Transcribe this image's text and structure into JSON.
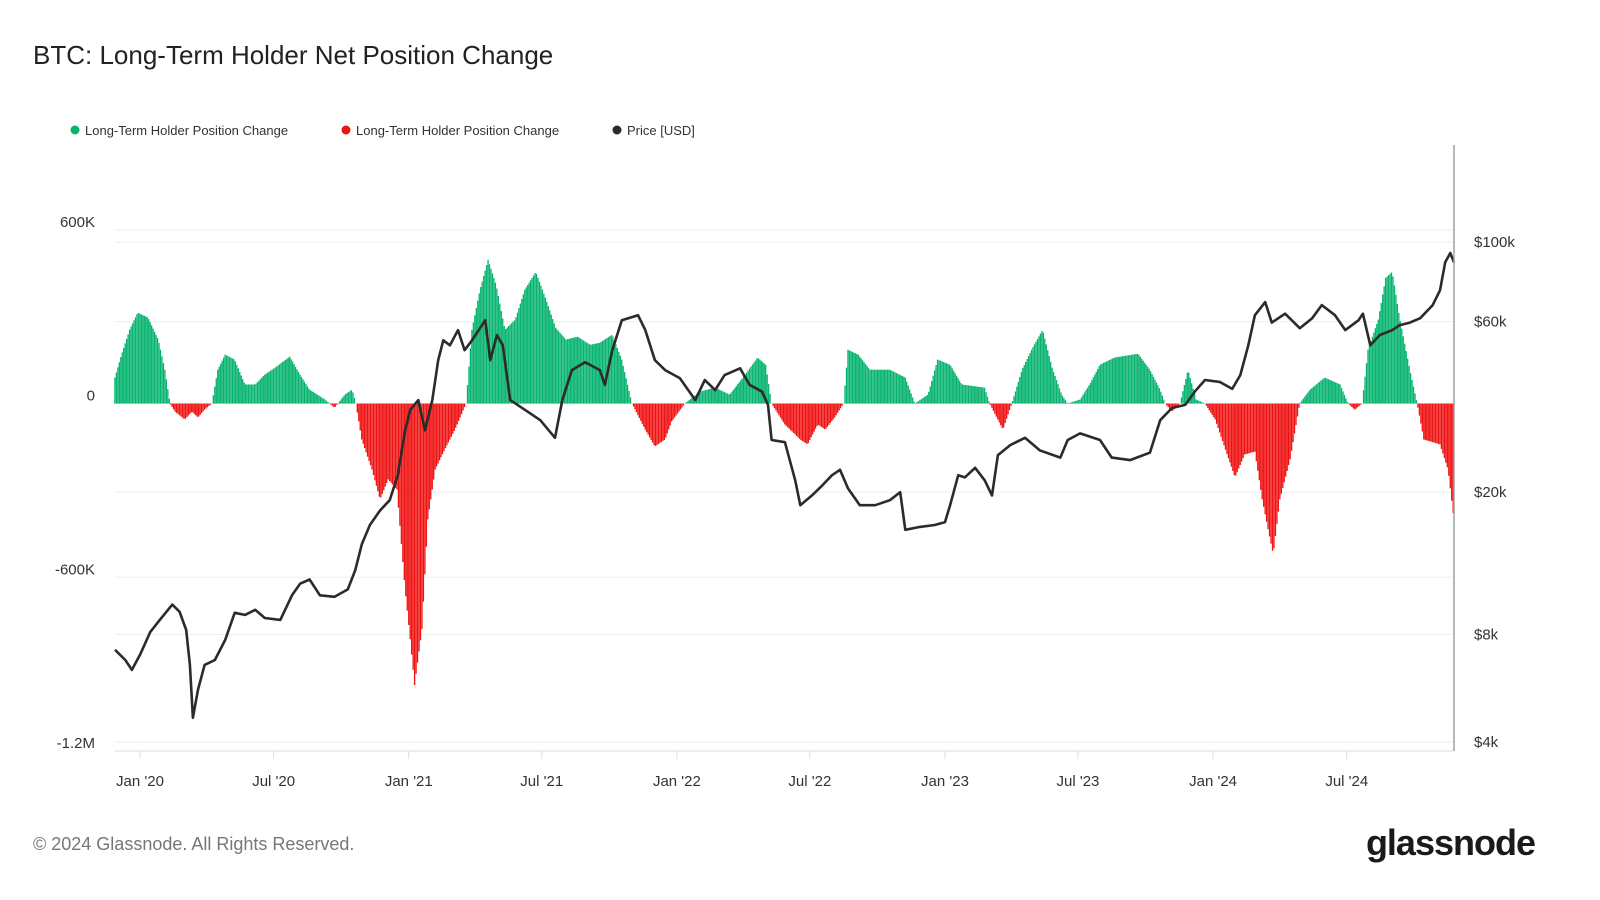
{
  "chart_data": {
    "type": "bar+line",
    "title": "BTC: Long-Term Holder Net Position Change",
    "legend_placement": "top-left",
    "legend": [
      {
        "label": "Long-Term Holder Position Change",
        "color": "#06b36f"
      },
      {
        "label": "Long-Term Holder Position Change",
        "color": "#ef1212"
      },
      {
        "label": "Price [USD]",
        "color": "#2b2b2b"
      }
    ],
    "colors": {
      "positive": "#06b36f",
      "negative": "#ef1212",
      "price": "#2b2b2b",
      "grid": "#eeeeee"
    },
    "grid": true,
    "x_range": [
      "2019-11-28",
      "2024-11-24"
    ],
    "x_ticks": [
      {
        "date": "2020-01-01",
        "label": "Jan '20"
      },
      {
        "date": "2020-07-01",
        "label": "Jul '20"
      },
      {
        "date": "2021-01-01",
        "label": "Jan '21"
      },
      {
        "date": "2021-07-01",
        "label": "Jul '21"
      },
      {
        "date": "2022-01-01",
        "label": "Jan '22"
      },
      {
        "date": "2022-07-01",
        "label": "Jul '22"
      },
      {
        "date": "2023-01-01",
        "label": "Jan '23"
      },
      {
        "date": "2023-07-01",
        "label": "Jul '23"
      },
      {
        "date": "2024-01-01",
        "label": "Jan '24"
      },
      {
        "date": "2024-07-01",
        "label": "Jul '24"
      }
    ],
    "left_axis": {
      "scale": "linear",
      "range": [
        -1200000,
        893000
      ],
      "ticks": [
        {
          "value": 600000,
          "label": "600K"
        },
        {
          "value": 0,
          "label": "0"
        },
        {
          "value": -600000,
          "label": "-600K"
        },
        {
          "value": -1200000,
          "label": "-1.2M"
        }
      ]
    },
    "right_axis": {
      "scale": "log",
      "range": [
        3780,
        187000
      ],
      "ticks": [
        {
          "value": 100000,
          "label": "$100k"
        },
        {
          "value": 60000,
          "label": "$60k"
        },
        {
          "value": 20000,
          "label": "$20k"
        },
        {
          "value": 8000,
          "label": "$8k"
        },
        {
          "value": 4000,
          "label": "$4k"
        }
      ]
    },
    "position_change_thousands_btc": [
      [
        "2019-11-28",
        90
      ],
      [
        "2019-12-07",
        169
      ],
      [
        "2019-12-18",
        255
      ],
      [
        "2019-12-29",
        314
      ],
      [
        "2020-01-12",
        297
      ],
      [
        "2020-01-26",
        221
      ],
      [
        "2020-02-04",
        117
      ],
      [
        "2020-02-11",
        0
      ],
      [
        "2020-02-18",
        -28
      ],
      [
        "2020-03-02",
        -55
      ],
      [
        "2020-03-12",
        -28
      ],
      [
        "2020-03-20",
        -48
      ],
      [
        "2020-03-29",
        -21
      ],
      [
        "2020-04-08",
        0
      ],
      [
        "2020-04-16",
        117
      ],
      [
        "2020-04-26",
        169
      ],
      [
        "2020-05-09",
        152
      ],
      [
        "2020-05-23",
        66
      ],
      [
        "2020-06-06",
        66
      ],
      [
        "2020-06-19",
        100
      ],
      [
        "2020-07-03",
        124
      ],
      [
        "2020-07-23",
        162
      ],
      [
        "2020-08-06",
        100
      ],
      [
        "2020-08-19",
        48
      ],
      [
        "2020-09-09",
        14
      ],
      [
        "2020-09-22",
        -14
      ],
      [
        "2020-10-06",
        31
      ],
      [
        "2020-10-16",
        48
      ],
      [
        "2020-10-21",
        0
      ],
      [
        "2020-10-29",
        -124
      ],
      [
        "2020-11-12",
        -228
      ],
      [
        "2020-11-23",
        -331
      ],
      [
        "2020-12-04",
        -262
      ],
      [
        "2020-12-16",
        -297
      ],
      [
        "2020-12-27",
        -641
      ],
      [
        "2021-01-03",
        -814
      ],
      [
        "2021-01-09",
        -972
      ],
      [
        "2021-01-19",
        -779
      ],
      [
        "2021-01-27",
        -400
      ],
      [
        "2021-02-06",
        -228
      ],
      [
        "2021-02-19",
        -159
      ],
      [
        "2021-03-05",
        -90
      ],
      [
        "2021-03-20",
        0
      ],
      [
        "2021-03-28",
        255
      ],
      [
        "2021-04-08",
        393
      ],
      [
        "2021-04-19",
        497
      ],
      [
        "2021-04-30",
        410
      ],
      [
        "2021-05-12",
        255
      ],
      [
        "2021-05-26",
        290
      ],
      [
        "2021-06-08",
        393
      ],
      [
        "2021-06-23",
        455
      ],
      [
        "2021-07-07",
        359
      ],
      [
        "2021-07-20",
        262
      ],
      [
        "2021-08-03",
        221
      ],
      [
        "2021-08-19",
        231
      ],
      [
        "2021-09-05",
        203
      ],
      [
        "2021-09-18",
        210
      ],
      [
        "2021-10-05",
        238
      ],
      [
        "2021-10-18",
        152
      ],
      [
        "2021-11-01",
        0
      ],
      [
        "2021-11-19",
        -90
      ],
      [
        "2021-12-02",
        -148
      ],
      [
        "2021-12-16",
        -124
      ],
      [
        "2021-12-25",
        -62
      ],
      [
        "2022-01-12",
        0
      ],
      [
        "2022-02-01",
        41
      ],
      [
        "2022-02-22",
        55
      ],
      [
        "2022-03-14",
        31
      ],
      [
        "2022-04-04",
        100
      ],
      [
        "2022-04-21",
        159
      ],
      [
        "2022-05-02",
        134
      ],
      [
        "2022-05-10",
        0
      ],
      [
        "2022-05-28",
        -72
      ],
      [
        "2022-06-18",
        -124
      ],
      [
        "2022-06-28",
        -141
      ],
      [
        "2022-07-12",
        -72
      ],
      [
        "2022-07-22",
        -90
      ],
      [
        "2022-08-04",
        -48
      ],
      [
        "2022-08-16",
        0
      ],
      [
        "2022-08-22",
        186
      ],
      [
        "2022-09-05",
        169
      ],
      [
        "2022-09-21",
        117
      ],
      [
        "2022-10-18",
        117
      ],
      [
        "2022-11-08",
        90
      ],
      [
        "2022-11-21",
        0
      ],
      [
        "2022-12-09",
        31
      ],
      [
        "2022-12-22",
        152
      ],
      [
        "2023-01-08",
        134
      ],
      [
        "2023-01-24",
        66
      ],
      [
        "2023-02-24",
        55
      ],
      [
        "2023-03-03",
        0
      ],
      [
        "2023-03-21",
        -90
      ],
      [
        "2023-04-02",
        0
      ],
      [
        "2023-04-16",
        117
      ],
      [
        "2023-04-29",
        186
      ],
      [
        "2023-05-14",
        255
      ],
      [
        "2023-05-27",
        124
      ],
      [
        "2023-06-09",
        31
      ],
      [
        "2023-06-17",
        0
      ],
      [
        "2023-07-04",
        14
      ],
      [
        "2023-07-17",
        66
      ],
      [
        "2023-07-31",
        134
      ],
      [
        "2023-08-20",
        159
      ],
      [
        "2023-09-21",
        172
      ],
      [
        "2023-10-07",
        117
      ],
      [
        "2023-10-21",
        48
      ],
      [
        "2023-10-28",
        0
      ],
      [
        "2023-11-06",
        -28
      ],
      [
        "2023-11-17",
        0
      ],
      [
        "2023-11-28",
        117
      ],
      [
        "2023-12-09",
        14
      ],
      [
        "2023-12-21",
        0
      ],
      [
        "2024-01-04",
        -55
      ],
      [
        "2024-01-17",
        -152
      ],
      [
        "2024-01-31",
        -255
      ],
      [
        "2024-02-13",
        -176
      ],
      [
        "2024-02-27",
        -166
      ],
      [
        "2024-03-08",
        -331
      ],
      [
        "2024-03-16",
        -434
      ],
      [
        "2024-03-23",
        -521
      ],
      [
        "2024-04-01",
        -331
      ],
      [
        "2024-04-15",
        -193
      ],
      [
        "2024-04-28",
        0
      ],
      [
        "2024-05-12",
        48
      ],
      [
        "2024-06-01",
        90
      ],
      [
        "2024-06-22",
        66
      ],
      [
        "2024-07-03",
        0
      ],
      [
        "2024-07-12",
        -21
      ],
      [
        "2024-07-22",
        0
      ],
      [
        "2024-07-30",
        186
      ],
      [
        "2024-08-13",
        290
      ],
      [
        "2024-08-23",
        434
      ],
      [
        "2024-09-01",
        455
      ],
      [
        "2024-09-11",
        297
      ],
      [
        "2024-09-25",
        117
      ],
      [
        "2024-10-05",
        0
      ],
      [
        "2024-10-14",
        -124
      ],
      [
        "2024-11-05",
        -141
      ],
      [
        "2024-11-16",
        -228
      ],
      [
        "2024-11-24",
        -400
      ]
    ],
    "price_usd": [
      [
        "2019-11-28",
        7250
      ],
      [
        "2019-12-12",
        6790
      ],
      [
        "2019-12-21",
        6370
      ],
      [
        "2020-01-01",
        7020
      ],
      [
        "2020-01-15",
        8140
      ],
      [
        "2020-01-28",
        8790
      ],
      [
        "2020-02-14",
        9700
      ],
      [
        "2020-02-24",
        9260
      ],
      [
        "2020-03-04",
        8240
      ],
      [
        "2020-03-09",
        6580
      ],
      [
        "2020-03-13",
        4680
      ],
      [
        "2020-03-20",
        5610
      ],
      [
        "2020-03-29",
        6580
      ],
      [
        "2020-04-12",
        6790
      ],
      [
        "2020-04-26",
        7730
      ],
      [
        "2020-05-09",
        9200
      ],
      [
        "2020-05-23",
        9080
      ],
      [
        "2020-06-06",
        9380
      ],
      [
        "2020-06-19",
        8900
      ],
      [
        "2020-07-10",
        8790
      ],
      [
        "2020-07-26",
        10300
      ],
      [
        "2020-08-06",
        11100
      ],
      [
        "2020-08-19",
        11400
      ],
      [
        "2020-09-02",
        10300
      ],
      [
        "2020-09-22",
        10200
      ],
      [
        "2020-10-10",
        10700
      ],
      [
        "2020-10-20",
        12100
      ],
      [
        "2020-10-29",
        14300
      ],
      [
        "2020-11-09",
        16200
      ],
      [
        "2020-11-23",
        17800
      ],
      [
        "2020-12-06",
        19000
      ],
      [
        "2020-12-17",
        22300
      ],
      [
        "2020-12-27",
        29800
      ],
      [
        "2021-01-03",
        34000
      ],
      [
        "2021-01-14",
        36200
      ],
      [
        "2021-01-23",
        29800
      ],
      [
        "2021-02-02",
        36200
      ],
      [
        "2021-02-10",
        46800
      ],
      [
        "2021-02-17",
        53200
      ],
      [
        "2021-02-26",
        51500
      ],
      [
        "2021-03-09",
        56800
      ],
      [
        "2021-03-18",
        49900
      ],
      [
        "2021-03-28",
        53200
      ],
      [
        "2021-04-15",
        60500
      ],
      [
        "2021-04-22",
        46800
      ],
      [
        "2021-05-01",
        55000
      ],
      [
        "2021-05-09",
        51500
      ],
      [
        "2021-05-19",
        36200
      ],
      [
        "2021-06-08",
        34000
      ],
      [
        "2021-06-29",
        31800
      ],
      [
        "2021-07-19",
        28400
      ],
      [
        "2021-07-29",
        36200
      ],
      [
        "2021-08-11",
        43900
      ],
      [
        "2021-08-29",
        46200
      ],
      [
        "2021-09-18",
        43900
      ],
      [
        "2021-09-25",
        39900
      ],
      [
        "2021-10-05",
        49900
      ],
      [
        "2021-10-18",
        60500
      ],
      [
        "2021-11-09",
        62500
      ],
      [
        "2021-11-19",
        56800
      ],
      [
        "2021-12-02",
        46800
      ],
      [
        "2021-12-16",
        43900
      ],
      [
        "2022-01-05",
        41700
      ],
      [
        "2022-01-26",
        36200
      ],
      [
        "2022-02-08",
        41200
      ],
      [
        "2022-02-22",
        38600
      ],
      [
        "2022-03-07",
        42500
      ],
      [
        "2022-03-28",
        44400
      ],
      [
        "2022-04-10",
        39900
      ],
      [
        "2022-04-27",
        38200
      ],
      [
        "2022-05-05",
        35100
      ],
      [
        "2022-05-10",
        28000
      ],
      [
        "2022-05-28",
        27600
      ],
      [
        "2022-06-11",
        21600
      ],
      [
        "2022-06-18",
        18400
      ],
      [
        "2022-07-04",
        19600
      ],
      [
        "2022-07-18",
        20900
      ],
      [
        "2022-07-31",
        22300
      ],
      [
        "2022-08-11",
        23100
      ],
      [
        "2022-08-22",
        20500
      ],
      [
        "2022-09-07",
        18400
      ],
      [
        "2022-09-28",
        18400
      ],
      [
        "2022-10-18",
        19000
      ],
      [
        "2022-11-01",
        20000
      ],
      [
        "2022-11-08",
        15700
      ],
      [
        "2022-11-28",
        16000
      ],
      [
        "2022-12-18",
        16200
      ],
      [
        "2023-01-01",
        16500
      ],
      [
        "2023-01-08",
        18400
      ],
      [
        "2023-01-19",
        22300
      ],
      [
        "2023-01-28",
        22000
      ],
      [
        "2023-02-11",
        23400
      ],
      [
        "2023-02-24",
        21600
      ],
      [
        "2023-03-06",
        19600
      ],
      [
        "2023-03-14",
        25400
      ],
      [
        "2023-03-31",
        27100
      ],
      [
        "2023-04-20",
        28400
      ],
      [
        "2023-05-10",
        26200
      ],
      [
        "2023-06-07",
        25000
      ],
      [
        "2023-06-17",
        28000
      ],
      [
        "2023-07-04",
        29200
      ],
      [
        "2023-07-31",
        28000
      ],
      [
        "2023-08-16",
        25000
      ],
      [
        "2023-09-10",
        24600
      ],
      [
        "2023-10-07",
        25800
      ],
      [
        "2023-10-21",
        31800
      ],
      [
        "2023-11-06",
        34400
      ],
      [
        "2023-11-24",
        35100
      ],
      [
        "2023-12-07",
        38200
      ],
      [
        "2023-12-21",
        41200
      ],
      [
        "2024-01-10",
        40700
      ],
      [
        "2024-01-27",
        38900
      ],
      [
        "2024-02-07",
        42500
      ],
      [
        "2024-02-18",
        51500
      ],
      [
        "2024-02-27",
        62500
      ],
      [
        "2024-03-12",
        68000
      ],
      [
        "2024-03-21",
        59600
      ],
      [
        "2024-04-08",
        63100
      ],
      [
        "2024-04-28",
        57500
      ],
      [
        "2024-05-15",
        61300
      ],
      [
        "2024-05-28",
        66700
      ],
      [
        "2024-06-15",
        62500
      ],
      [
        "2024-06-29",
        56800
      ],
      [
        "2024-07-17",
        60500
      ],
      [
        "2024-07-23",
        63100
      ],
      [
        "2024-08-02",
        51500
      ],
      [
        "2024-08-15",
        55000
      ],
      [
        "2024-09-01",
        56800
      ],
      [
        "2024-09-11",
        58600
      ],
      [
        "2024-09-25",
        59600
      ],
      [
        "2024-10-09",
        61300
      ],
      [
        "2024-10-26",
        66700
      ],
      [
        "2024-11-05",
        73400
      ],
      [
        "2024-11-12",
        87900
      ],
      [
        "2024-11-19",
        93300
      ],
      [
        "2024-11-24",
        87900
      ]
    ]
  },
  "footer": {
    "copyright": "© 2024 Glassnode. All Rights Reserved.",
    "logo": "glassnode"
  }
}
